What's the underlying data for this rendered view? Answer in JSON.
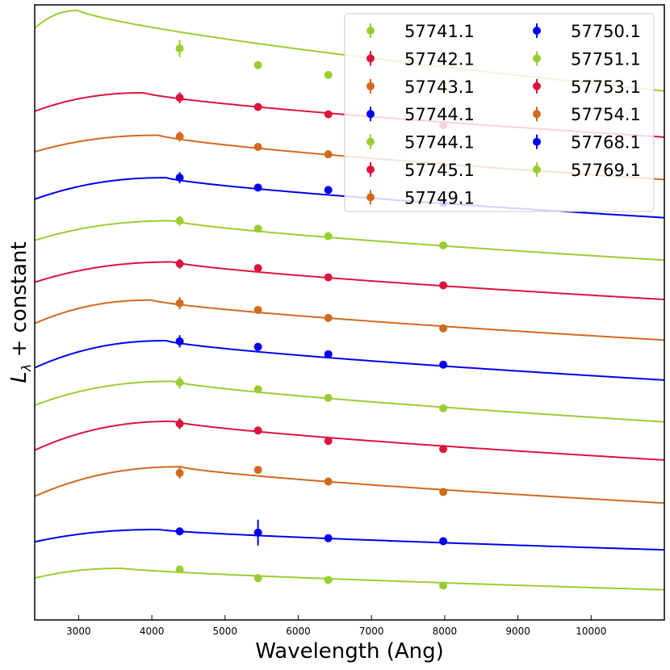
{
  "chart_data": {
    "type": "scatter",
    "xlabel": "Wavelength (Ang)",
    "ylabel_main": "L",
    "ylabel_sub": "λ",
    "ylabel_suffix": " + constant",
    "xlim": [
      2400,
      11000
    ],
    "ylim": [
      0,
      100
    ],
    "xticks": [
      3000,
      4000,
      5000,
      6000,
      7000,
      8000,
      9000,
      10000
    ],
    "xtick_labels": [
      "3000",
      "4000",
      "5000",
      "6000",
      "7000",
      "8000",
      "9000",
      "10000"
    ],
    "grid": false,
    "legend_position": "top-right",
    "legend_columns": 2,
    "series": [
      {
        "name": "57741.1",
        "color": "#9acd32",
        "curve_left": 96.2,
        "curve_peak": 99.1,
        "peak_x": 3000,
        "curve_right": 86.0,
        "x": [
          4380,
          5450,
          6410,
          7980
        ],
        "y": [
          92.9,
          90.2,
          88.6,
          86.8
        ],
        "err": [
          1.4,
          0.4,
          0.4,
          0.4
        ]
      },
      {
        "name": "57742.1",
        "color": "#dc143c",
        "curve_left": 82.7,
        "curve_peak": 85.7,
        "peak_x": 3900,
        "curve_right": 78.5,
        "x": [
          4380,
          5450,
          6410,
          7980
        ],
        "y": [
          84.9,
          83.4,
          82.2,
          80.4
        ],
        "err": [
          0.9,
          0.4,
          0.4,
          0.4
        ]
      },
      {
        "name": "57743.1",
        "color": "#d2691e",
        "curve_left": 76.1,
        "curve_peak": 78.8,
        "peak_x": 4100,
        "curve_right": 71.6,
        "x": [
          4380,
          5450,
          6410,
          7980
        ],
        "y": [
          78.6,
          76.9,
          75.7,
          73.8
        ],
        "err": [
          0.8,
          0.4,
          0.4,
          0.4
        ]
      },
      {
        "name": "57744.1",
        "color": "#0000ee",
        "curve_left": 68.4,
        "curve_peak": 71.9,
        "peak_x": 4200,
        "curve_right": 65.4,
        "x": [
          4380,
          5450,
          6410,
          7980
        ],
        "y": [
          71.9,
          70.3,
          69.9,
          67.8
        ],
        "err": [
          0.9,
          0.4,
          0.4,
          0.4
        ]
      },
      {
        "name": "57744.1",
        "color": "#9acd32",
        "curve_left": 61.7,
        "curve_peak": 64.9,
        "peak_x": 4300,
        "curve_right": 58.5,
        "x": [
          4380,
          5450,
          6410,
          7980
        ],
        "y": [
          64.9,
          63.6,
          62.4,
          60.9
        ],
        "err": [
          0.8,
          0.4,
          0.4,
          0.4
        ]
      },
      {
        "name": "57745.1",
        "color": "#dc143c",
        "curve_left": 54.9,
        "curve_peak": 58.2,
        "peak_x": 4300,
        "curve_right": 52.1,
        "x": [
          4380,
          5450,
          6410,
          7980
        ],
        "y": [
          57.9,
          57.2,
          55.7,
          54.4
        ],
        "err": [
          0.8,
          0.4,
          0.4,
          0.4
        ]
      },
      {
        "name": "57749.1",
        "color": "#d2691e",
        "curve_left": 48.2,
        "curve_peak": 52.0,
        "peak_x": 4000,
        "curve_right": 45.5,
        "x": [
          4380,
          5450,
          6410,
          7980
        ],
        "y": [
          51.5,
          50.4,
          49.1,
          47.4
        ],
        "err": [
          1.0,
          0.4,
          0.4,
          0.4
        ]
      },
      {
        "name": "57750.1",
        "color": "#0000ee",
        "curve_left": 41.0,
        "curve_peak": 45.4,
        "peak_x": 4200,
        "curve_right": 39.0,
        "x": [
          4380,
          5450,
          6410,
          7980
        ],
        "y": [
          45.3,
          44.4,
          43.2,
          41.5
        ],
        "err": [
          1.0,
          0.4,
          0.4,
          0.4
        ]
      },
      {
        "name": "57751.1",
        "color": "#9acd32",
        "curve_left": 34.9,
        "curve_peak": 38.8,
        "peak_x": 4300,
        "curve_right": 32.2,
        "x": [
          4380,
          5450,
          6410,
          7980
        ],
        "y": [
          38.6,
          37.5,
          36.1,
          34.4
        ],
        "err": [
          1.0,
          0.4,
          0.4,
          0.4
        ]
      },
      {
        "name": "57753.1",
        "color": "#dc143c",
        "curve_left": 27.6,
        "curve_peak": 32.3,
        "peak_x": 4300,
        "curve_right": 26.0,
        "x": [
          4380,
          5450,
          6410,
          7980
        ],
        "y": [
          31.9,
          30.8,
          29.1,
          27.8
        ],
        "err": [
          0.9,
          0.4,
          0.4,
          0.4
        ]
      },
      {
        "name": "57754.1",
        "color": "#d2691e",
        "curve_left": 20.1,
        "curve_peak": 24.9,
        "peak_x": 4400,
        "curve_right": 19.0,
        "x": [
          4380,
          5450,
          6410,
          7980
        ],
        "y": [
          23.9,
          24.4,
          22.5,
          20.8
        ],
        "err": [
          0.9,
          0.4,
          0.4,
          0.4
        ]
      },
      {
        "name": "57768.1",
        "color": "#0000ee",
        "curve_left": 12.7,
        "curve_peak": 14.7,
        "peak_x": 4100,
        "curve_right": 11.4,
        "x": [
          4380,
          5450,
          6410,
          7980
        ],
        "y": [
          14.4,
          14.2,
          13.3,
          12.8
        ],
        "err": [
          0.4,
          2.1,
          0.4,
          0.4
        ]
      },
      {
        "name": "57769.1",
        "color": "#9acd32",
        "curve_left": 6.8,
        "curve_peak": 8.4,
        "peak_x": 3600,
        "curve_right": 4.9,
        "x": [
          4380,
          5450,
          6410,
          7980
        ],
        "y": [
          8.2,
          6.8,
          6.5,
          5.6
        ],
        "err": [
          0.4,
          0.4,
          0.4,
          0.4
        ]
      }
    ]
  }
}
